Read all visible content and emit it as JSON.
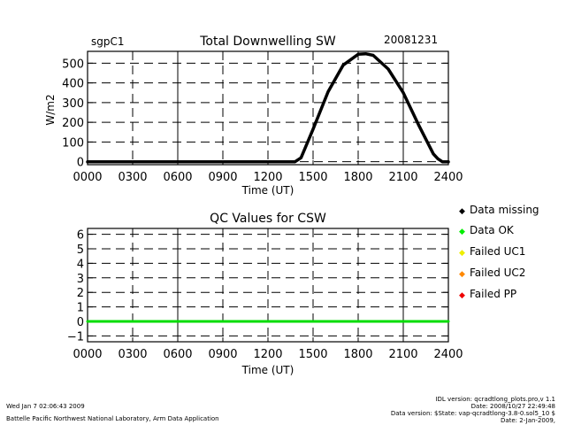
{
  "header": {
    "site": "sgpC1",
    "date": "20081231"
  },
  "chart_data": [
    {
      "type": "line",
      "title": "Total Downwelling SW",
      "xlabel": "Time (UT)",
      "ylabel": "W/m2",
      "xlim": [
        0,
        24
      ],
      "ylim": [
        -15,
        560
      ],
      "xticks": [
        "0000",
        "0300",
        "0600",
        "0900",
        "1200",
        "1500",
        "1800",
        "2100",
        "2400"
      ],
      "yticks": [
        0,
        100,
        200,
        300,
        400,
        500
      ],
      "grid": true,
      "series": [
        {
          "color": "#000000",
          "x": [
            0,
            6,
            12,
            13.8,
            14.2,
            15,
            16,
            17,
            18,
            18.5,
            19,
            20,
            21,
            22,
            23,
            23.3,
            23.6,
            24
          ],
          "y": [
            0,
            0,
            0,
            0,
            20,
            165,
            355,
            490,
            545,
            548,
            540,
            470,
            350,
            190,
            40,
            15,
            0,
            0
          ]
        }
      ]
    },
    {
      "type": "scatter",
      "title": "QC Values for CSW",
      "xlabel": "Time (UT)",
      "xlim": [
        0,
        24
      ],
      "ylim": [
        -1.4,
        6.4
      ],
      "xticks": [
        "0000",
        "0300",
        "0600",
        "0900",
        "1200",
        "1500",
        "1800",
        "2100",
        "2400"
      ],
      "yticks": [
        -1,
        0,
        1,
        2,
        3,
        4,
        5,
        6
      ],
      "grid": true,
      "series": [
        {
          "color": "#00dd00",
          "x": [
            0,
            24
          ],
          "y": [
            0,
            0
          ]
        }
      ]
    }
  ],
  "legend": [
    {
      "label": "Data missing",
      "color": "#000000"
    },
    {
      "label": "Data OK",
      "color": "#00ee00"
    },
    {
      "label": "Failed UC1",
      "color": "#eeee00"
    },
    {
      "label": "Failed UC2",
      "color": "#ff8800"
    },
    {
      "label": "Failed PP",
      "color": "#ee0000"
    }
  ],
  "footer": {
    "timestamp": "Wed Jan  7 02:06:43 2009",
    "org": "Battelle Pacific Northwest National Laboratory, Arm Data Application",
    "idl_version": "IDL version: qcradtlong_plots.pro,v 1.1",
    "idl_date": "Date: 2008/10/27 22:49:48",
    "data_version": "Data version: $State: vap-qcradtlong-3.8-0.sol5_10 $",
    "data_date": "Date: 2-Jan-2009,"
  }
}
